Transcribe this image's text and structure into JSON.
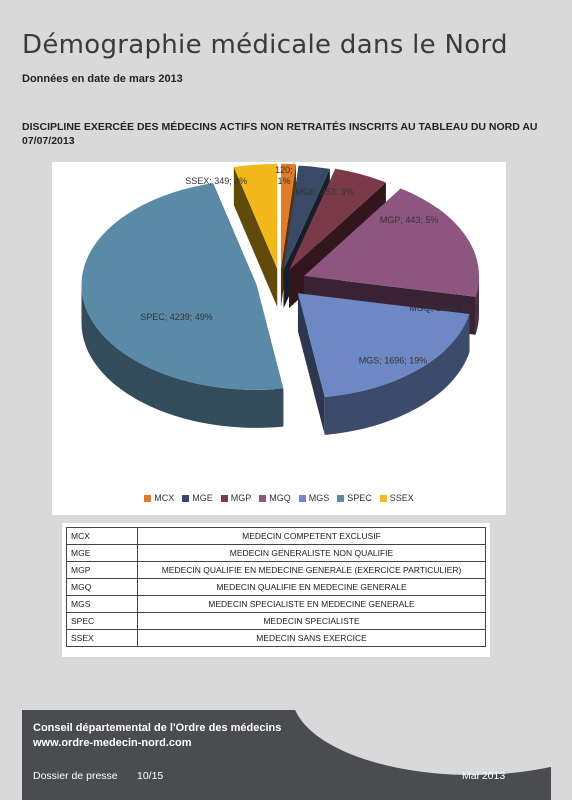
{
  "header": {
    "title": "Démographie médicale dans le Nord",
    "subtitle": "Données en date de mars 2013"
  },
  "section_heading": "DISCIPLINE EXERCÉE DES MÉDECINS ACTIFS NON RETRAITÉS INSCRITS AU TABLEAU DU NORD AU 07/07/2013",
  "chart_data": {
    "type": "pie",
    "title": "",
    "slices": [
      {
        "category": "MCX",
        "value": 120,
        "percent": 1,
        "label_lines": [
          "MCX;",
          "120;",
          "1%"
        ],
        "color": "#e07b2a"
      },
      {
        "category": "MGE",
        "value": 253,
        "percent": 3,
        "label_lines": [
          "MGE; 253; 3%"
        ],
        "color": "#3a4a66"
      },
      {
        "category": "MGP",
        "value": 443,
        "percent": 5,
        "label_lines": [
          "MGP; 443; 5%"
        ],
        "color": "#7a3a48"
      },
      {
        "category": "MGQ",
        "value": 1648,
        "percent": 19,
        "label_lines": [
          "MGQ; 1648; 19%"
        ],
        "color": "#8c5680"
      },
      {
        "category": "MGS",
        "value": 1696,
        "percent": 19,
        "label_lines": [
          "MGS; 1696; 19%"
        ],
        "color": "#6d88c4"
      },
      {
        "category": "SPEC",
        "value": 4239,
        "percent": 49,
        "label_lines": [
          "SPEC; 4239; 49%"
        ],
        "color": "#5a8aa6"
      },
      {
        "category": "SSEX",
        "value": 349,
        "percent": 4,
        "label_lines": [
          "SSEX; 349; 4%"
        ],
        "color": "#f2b81c"
      }
    ],
    "legend": [
      "MCX",
      "MGE",
      "MGP",
      "MGQ",
      "MGS",
      "SPEC",
      "SSEX"
    ],
    "legend_position": "bottom"
  },
  "abbreviations": [
    {
      "code": "MCX",
      "description": "MEDECIN COMPETENT EXCLUSIF"
    },
    {
      "code": "MGE",
      "description": "MEDECIN GENERALISTE NON QUALIFIE"
    },
    {
      "code": "MGP",
      "description": "MEDECIN QUALIFIE EN MEDECINE GENERALE (EXERCICE PARTICULIER)"
    },
    {
      "code": "MGQ",
      "description": "MEDECIN QUALIFIE EN MEDECINE GENERALE"
    },
    {
      "code": "MGS",
      "description": "MEDECIN SPECIALISTE EN MEDECINE GENERALE"
    },
    {
      "code": "SPEC",
      "description": "MEDECIN SPECIALISTE"
    },
    {
      "code": "SSEX",
      "description": "MEDECIN SANS EXERCICE"
    }
  ],
  "footer": {
    "organization": "Conseil départemental de l'Ordre des médecins",
    "website": "www.ordre-medecin-nord.com",
    "press_label": "Dossier de presse",
    "page": "10/15",
    "date": "Mai 2013"
  }
}
